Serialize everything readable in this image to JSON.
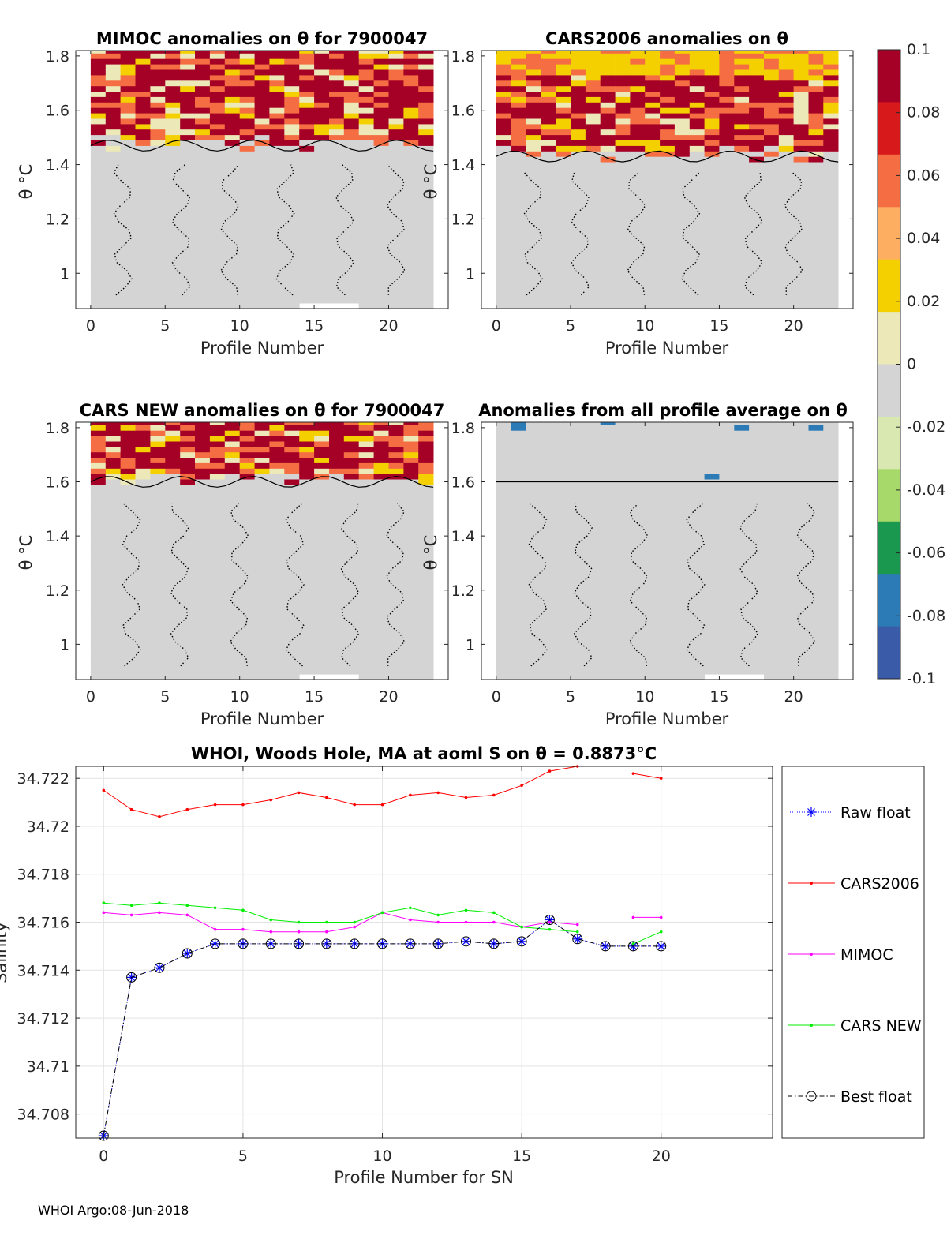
{
  "footer": "WHOI Argo:08-Jun-2018",
  "theta_symbol": "θ",
  "panels": [
    {
      "title": "MIMOC anomalies on θ  for 7900047",
      "xlabel": "Profile Number",
      "ylabel": "θ °C",
      "xticks": [
        "0",
        "5",
        "10",
        "15",
        "20"
      ],
      "yticks": [
        "1",
        "1.2",
        "1.4",
        "1.6",
        "1.8"
      ],
      "xlim": [
        -1,
        24
      ],
      "ylim": [
        0.87,
        1.82
      ],
      "anomaly_top_theta": 1.47
    },
    {
      "title": "CARS2006 anomalies on θ",
      "xlabel": "Profile Number",
      "ylabel": "θ °C",
      "xticks": [
        "0",
        "5",
        "10",
        "15",
        "20"
      ],
      "yticks": [
        "1",
        "1.2",
        "1.4",
        "1.6",
        "1.8"
      ],
      "xlim": [
        -1,
        24
      ],
      "ylim": [
        0.87,
        1.82
      ],
      "anomaly_top_theta": 1.43
    },
    {
      "title": "CARS NEW anomalies on θ for 7900047",
      "xlabel": "Profile Number",
      "ylabel": "θ °C",
      "xticks": [
        "0",
        "5",
        "10",
        "15",
        "20"
      ],
      "yticks": [
        "1",
        "1.2",
        "1.4",
        "1.6",
        "1.8"
      ],
      "xlim": [
        -1,
        24
      ],
      "ylim": [
        0.87,
        1.82
      ],
      "anomaly_top_theta": 1.6
    },
    {
      "title": "Anomalies from all profile average on θ",
      "xlabel": "Profile Number",
      "ylabel": "θ °C",
      "xticks": [
        "0",
        "5",
        "10",
        "15",
        "20"
      ],
      "yticks": [
        "1",
        "1.2",
        "1.4",
        "1.6",
        "1.8"
      ],
      "xlim": [
        -1,
        24
      ],
      "ylim": [
        0.87,
        1.82
      ],
      "anomaly_top_theta": 1.6
    }
  ],
  "colorbar": {
    "ticks": [
      "0.1",
      "0.08",
      "0.06",
      "0.04",
      "0.02",
      "0",
      "-0.02",
      "-0.04",
      "-0.06",
      "-0.08",
      "-0.1"
    ],
    "range": [
      -0.1,
      0.1
    ],
    "colors": [
      "#a50026",
      "#d7191c",
      "#f46d43",
      "#fdae61",
      "#f5d000",
      "#ece8b8",
      "#d4d4d4",
      "#d9e8b0",
      "#a6d96a",
      "#1a9850",
      "#2c7bb6",
      "#3a5ba8"
    ]
  },
  "chart_data": {
    "type": "line",
    "title": "WHOI, Woods Hole, MA at aoml S on θ = 0.8873°C",
    "xlabel": "Profile Number for SN",
    "ylabel": "Salinity",
    "xlim": [
      -1,
      24
    ],
    "ylim": [
      34.707,
      34.7225
    ],
    "xticks": [
      "0",
      "5",
      "10",
      "15",
      "20"
    ],
    "yticks": [
      "34.708",
      "34.71",
      "34.712",
      "34.714",
      "34.716",
      "34.718",
      "34.72",
      "34.722"
    ],
    "x": [
      0,
      1,
      2,
      3,
      4,
      5,
      6,
      7,
      8,
      9,
      10,
      11,
      12,
      13,
      14,
      15,
      16,
      17,
      18,
      19,
      20
    ],
    "series": [
      {
        "name": "Raw float",
        "color": "#0000ff",
        "values": [
          34.7071,
          34.7137,
          34.7141,
          34.7147,
          34.7151,
          34.7151,
          34.7151,
          34.7151,
          34.7151,
          34.7151,
          34.7151,
          34.7151,
          34.7151,
          34.7152,
          34.7151,
          34.7152,
          34.7161,
          34.7153,
          34.715,
          34.715,
          34.715
        ]
      },
      {
        "name": "CARS2006",
        "color": "#ff0000",
        "values": [
          34.7215,
          34.7207,
          34.7204,
          34.7207,
          34.7209,
          34.7209,
          34.7211,
          34.7214,
          34.7212,
          34.7209,
          34.7209,
          34.7213,
          34.7214,
          34.7212,
          34.7213,
          34.7217,
          34.7223,
          34.7225,
          null,
          34.7222,
          34.722
        ]
      },
      {
        "name": "MIMOC",
        "color": "#ff00ff",
        "values": [
          34.7164,
          34.7163,
          34.7164,
          34.7163,
          34.7157,
          34.7157,
          34.7156,
          34.7156,
          34.7156,
          34.7158,
          34.7164,
          34.7161,
          34.716,
          34.716,
          34.716,
          34.7158,
          34.716,
          34.7159,
          null,
          34.7162,
          34.7162
        ]
      },
      {
        "name": "CARS NEW",
        "color": "#00ee00",
        "values": [
          34.7168,
          34.7167,
          34.7168,
          34.7167,
          34.7166,
          34.7165,
          34.7161,
          34.716,
          34.716,
          34.716,
          34.7164,
          34.7166,
          34.7163,
          34.7165,
          34.7164,
          34.7158,
          34.7157,
          34.7156,
          null,
          34.7151,
          34.7156
        ]
      },
      {
        "name": "Best float",
        "color": "#000000",
        "values": [
          34.7071,
          34.7137,
          34.7141,
          34.7147,
          34.7151,
          34.7151,
          34.7151,
          34.7151,
          34.7151,
          34.7151,
          34.7151,
          34.7151,
          34.7151,
          34.7152,
          34.7151,
          34.7152,
          34.7161,
          34.7153,
          34.715,
          34.715,
          34.715
        ]
      }
    ]
  }
}
